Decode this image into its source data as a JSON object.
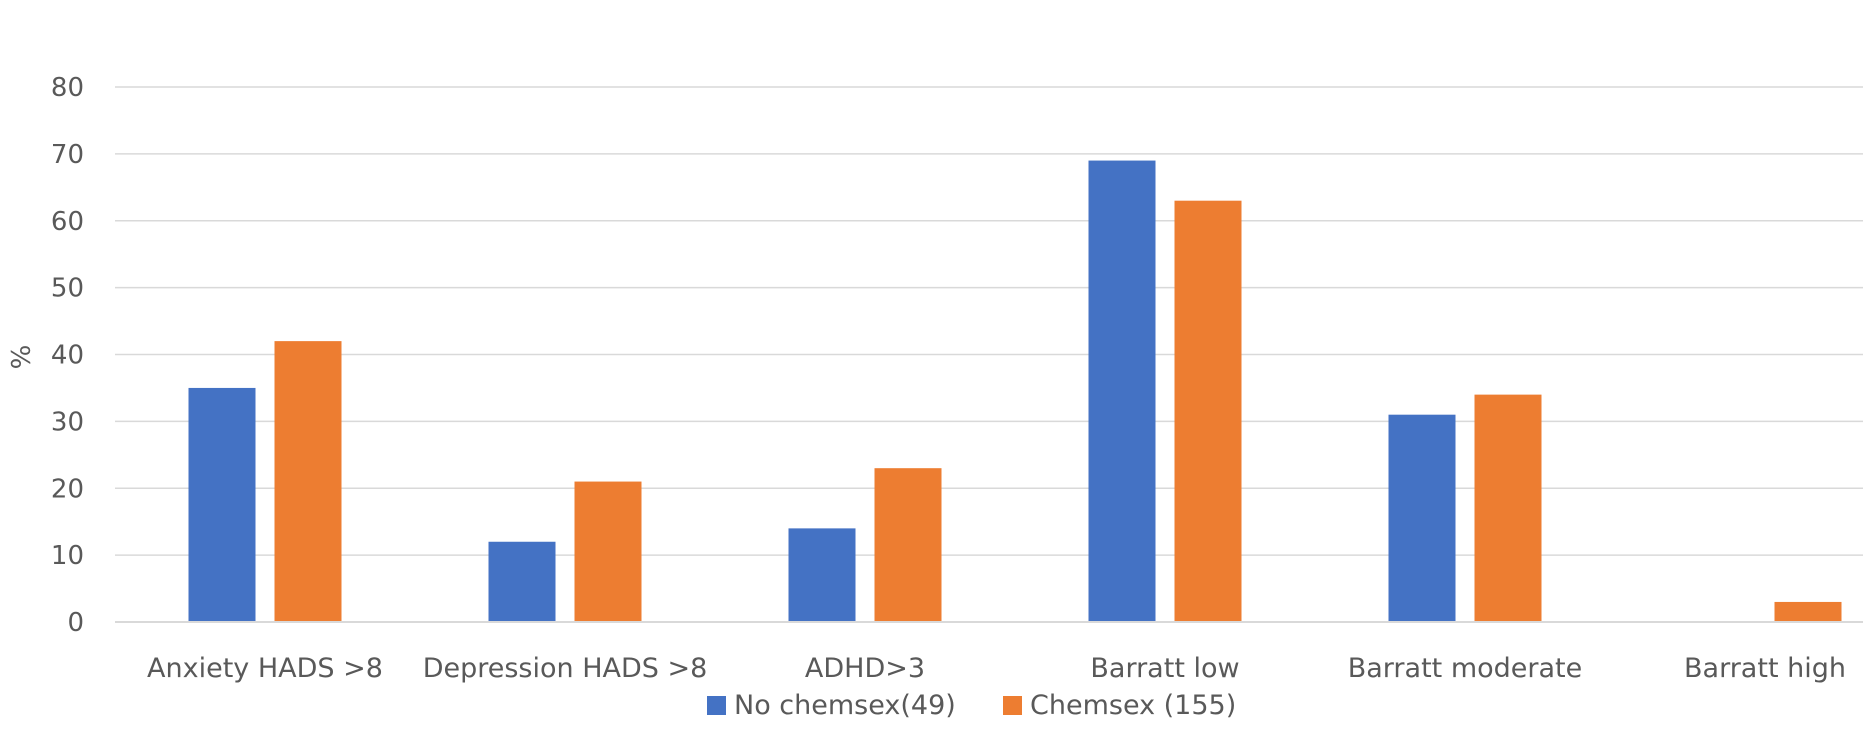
{
  "chart_data": {
    "type": "bar",
    "title": "",
    "xlabel": "",
    "ylabel": "%",
    "ylim": [
      0,
      80
    ],
    "yticks": [
      0,
      10,
      20,
      30,
      40,
      50,
      60,
      70,
      80
    ],
    "grid": true,
    "legend_position": "bottom",
    "categories": [
      "Anxiety HADS >8",
      "Depression HADS >8",
      "ADHD>3",
      "Barratt low",
      "Barratt moderate",
      "Barratt high"
    ],
    "series": [
      {
        "name": "No chemsex(49)",
        "color": "#4472C4",
        "values": [
          35,
          12,
          14,
          69,
          31,
          0
        ]
      },
      {
        "name": "Chemsex (155)",
        "color": "#ED7D31",
        "values": [
          42,
          21,
          23,
          63,
          34,
          3
        ]
      }
    ]
  }
}
